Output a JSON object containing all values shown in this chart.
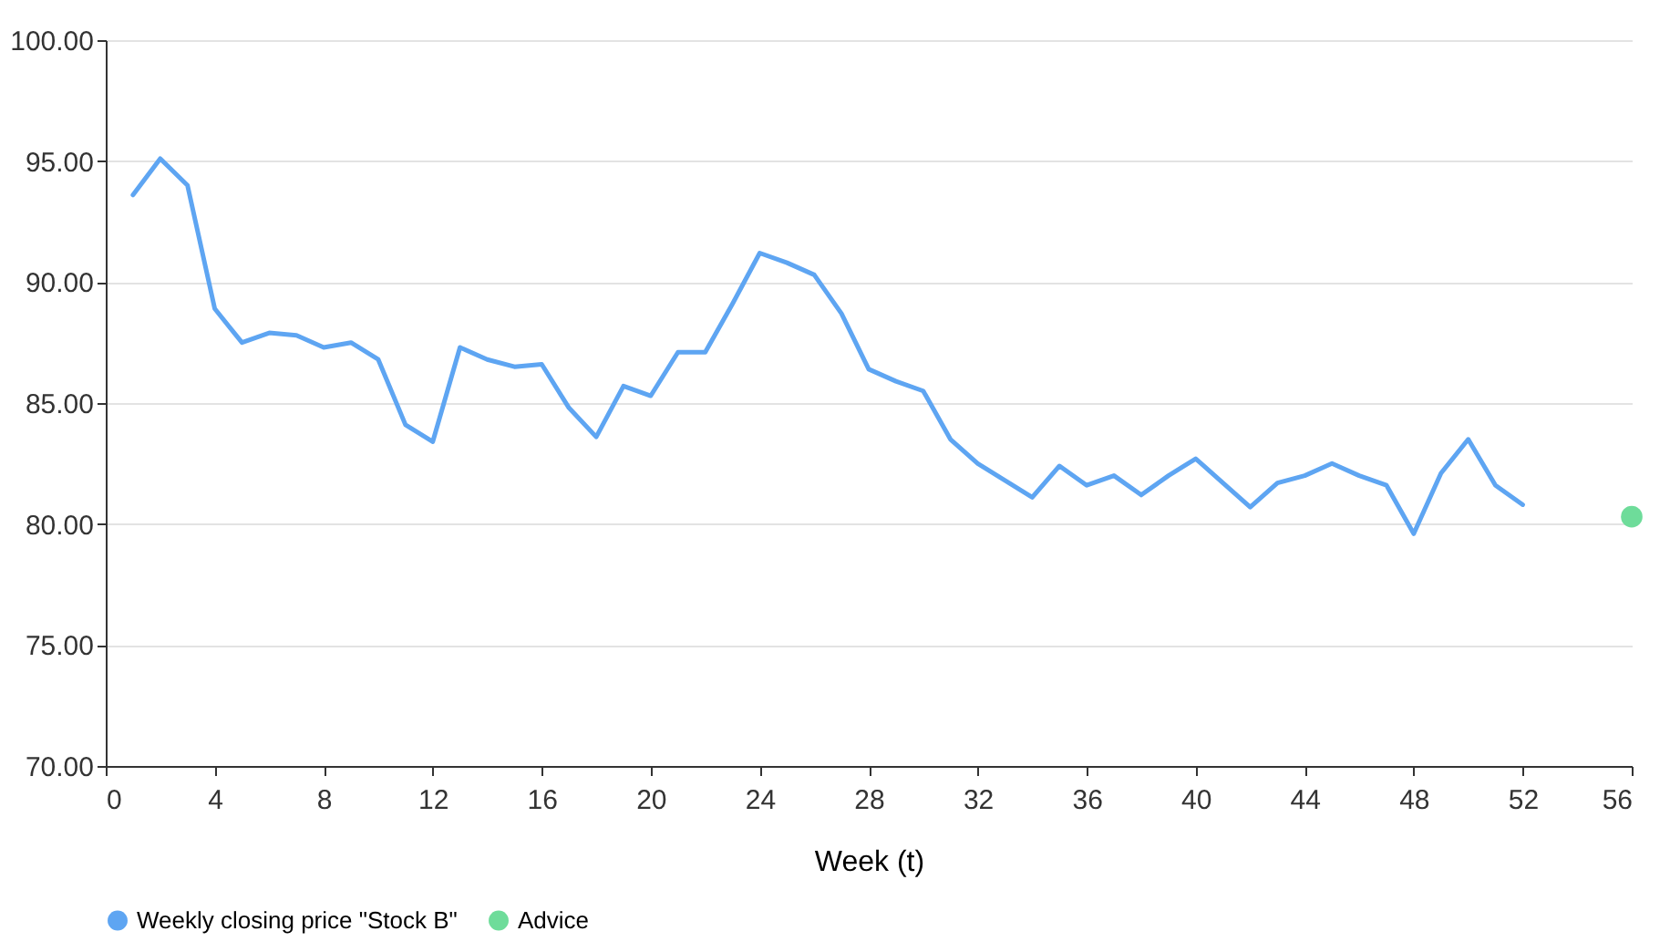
{
  "chart_data": {
    "type": "line",
    "xlabel": "Week (t)",
    "xlim": [
      0,
      56
    ],
    "xticks": [
      0,
      4,
      8,
      12,
      16,
      20,
      24,
      28,
      32,
      36,
      40,
      44,
      48,
      52,
      56
    ],
    "ylim": [
      70,
      100
    ],
    "yticks": [
      {
        "value": 70,
        "label": "70.00"
      },
      {
        "value": 75,
        "label": "75.00"
      },
      {
        "value": 80,
        "label": "80.00"
      },
      {
        "value": 85,
        "label": "85.00"
      },
      {
        "value": 90,
        "label": "90.00"
      },
      {
        "value": 95,
        "label": "95.00"
      },
      {
        "value": 100,
        "label": "100.00"
      }
    ],
    "grid": "y",
    "legend": "bottom",
    "marker": "none",
    "series": [
      {
        "name": "Weekly closing price \"Stock B\"",
        "color": "#5ea5f2",
        "line_style": "solid",
        "x": [
          1,
          2,
          3,
          4,
          5,
          6,
          7,
          8,
          9,
          10,
          11,
          12,
          13,
          14,
          15,
          16,
          17,
          18,
          19,
          20,
          21,
          22,
          23,
          24,
          25,
          26,
          27,
          28,
          29,
          30,
          31,
          32,
          33,
          34,
          35,
          36,
          37,
          38,
          39,
          40,
          41,
          42,
          43,
          44,
          45,
          46,
          47,
          48,
          49,
          50,
          51,
          52
        ],
        "values": [
          93.6,
          95.1,
          94.0,
          88.9,
          87.5,
          87.9,
          87.8,
          87.3,
          87.5,
          86.8,
          84.1,
          83.4,
          87.3,
          86.8,
          86.5,
          86.6,
          84.8,
          83.6,
          85.7,
          85.3,
          87.1,
          87.1,
          89.1,
          91.2,
          90.8,
          90.3,
          88.7,
          86.4,
          85.9,
          85.5,
          83.5,
          82.5,
          81.8,
          81.1,
          82.4,
          81.6,
          82.0,
          81.2,
          82.0,
          82.7,
          81.7,
          80.7,
          81.7,
          82.0,
          82.5,
          82.0,
          81.6,
          79.6,
          82.1,
          83.5,
          81.6,
          80.8
        ]
      },
      {
        "name": "Advice",
        "color": "#6edc9a",
        "type": "scatter",
        "marker": "circle",
        "x": [
          56
        ],
        "values": [
          80.3
        ]
      }
    ]
  }
}
